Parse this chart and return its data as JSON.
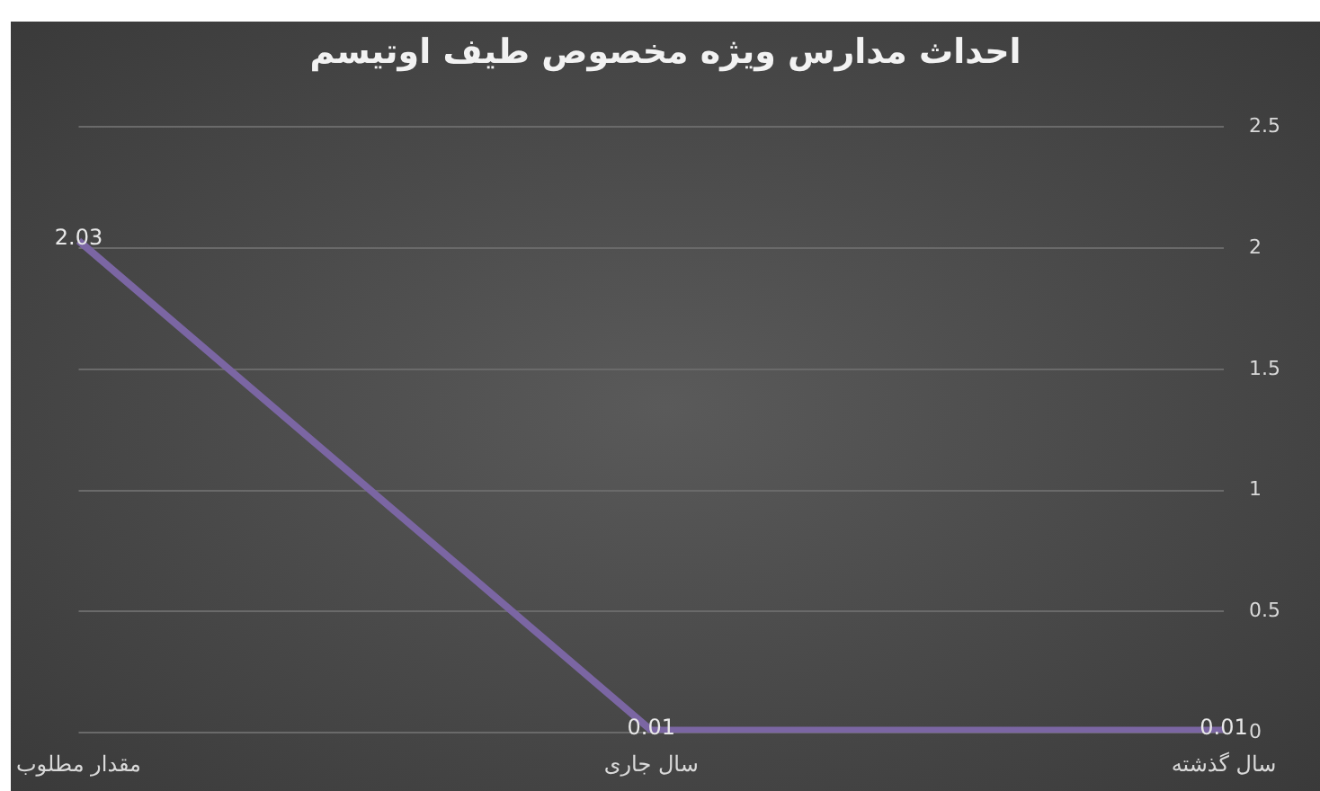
{
  "chart_data": {
    "type": "line",
    "title": "احداث مدارس ویژه مخصوص طیف اوتیسم",
    "categories": [
      "مقدار مطلوب",
      "سال جاری",
      "سال گذشته"
    ],
    "series": [
      {
        "color": "#7b66a3",
        "values": [
          2.03,
          0.01,
          0.01
        ]
      }
    ],
    "ylim": [
      0,
      2.5
    ],
    "yticks": [
      0,
      0.5,
      1,
      1.5,
      2,
      2.5
    ],
    "grid": "y",
    "data_labels": true,
    "marker": "none",
    "line_style": "solid",
    "legend": false
  }
}
